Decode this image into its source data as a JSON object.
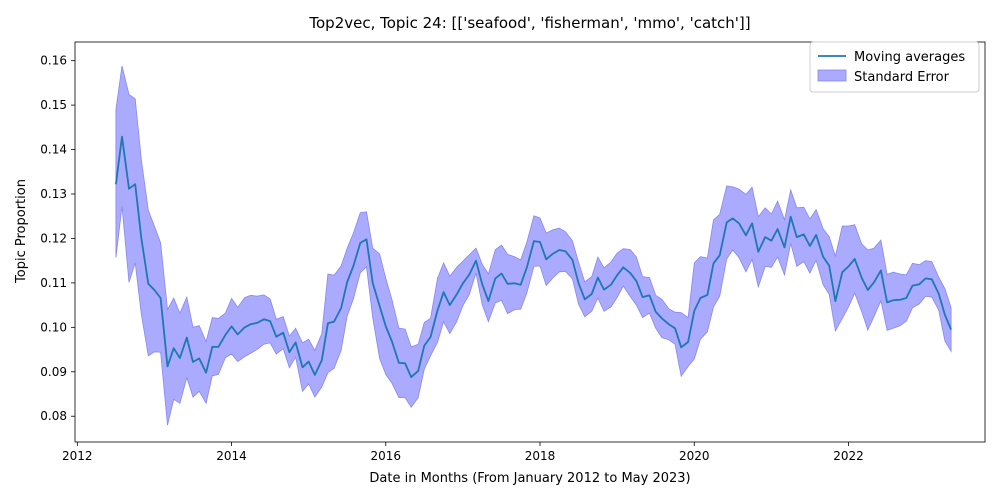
{
  "chart_data": {
    "type": "line",
    "title": "Top2vec, Topic 24: [['seafood', 'fisherman', 'mmo', 'catch']]",
    "xlabel": "Date in Months (From January 2012 to May 2023)",
    "ylabel": "Topic Proportion",
    "xlim": [
      2011.97,
      2023.77
    ],
    "ylim": [
      0.0742,
      0.1642
    ],
    "x_ticks": [
      2012,
      2014,
      2016,
      2018,
      2020,
      2022
    ],
    "y_ticks": [
      0.08,
      0.09,
      0.1,
      0.11,
      0.12,
      0.13,
      0.14,
      0.15,
      0.16
    ],
    "y_tick_labels": [
      "0.08",
      "0.09",
      "0.10",
      "0.11",
      "0.12",
      "0.13",
      "0.14",
      "0.15",
      "0.16"
    ],
    "grid": false,
    "legend": {
      "position": "top-right",
      "entries": [
        "Moving averages",
        "Standard Error"
      ]
    },
    "colors": {
      "line": "#1f77b4",
      "band": "#aaaaff",
      "band_edge": "#8888ee"
    },
    "series": [
      {
        "name": "Moving averages",
        "x": [
          2012.5,
          2012.58,
          2012.67,
          2012.75,
          2012.83,
          2012.92,
          2013.0,
          2013.08,
          2013.17,
          2013.25,
          2013.33,
          2013.42,
          2013.5,
          2013.58,
          2013.67,
          2013.75,
          2013.83,
          2013.92,
          2014.0,
          2014.08,
          2014.17,
          2014.25,
          2014.33,
          2014.42,
          2014.5,
          2014.58,
          2014.67,
          2014.75,
          2014.83,
          2014.92,
          2015.0,
          2015.08,
          2015.17,
          2015.25,
          2015.33,
          2015.42,
          2015.5,
          2015.58,
          2015.67,
          2015.75,
          2015.83,
          2015.92,
          2016.0,
          2016.08,
          2016.17,
          2016.25,
          2016.33,
          2016.42,
          2016.5,
          2016.58,
          2016.67,
          2016.75,
          2016.83,
          2016.92,
          2017.0,
          2017.08,
          2017.17,
          2017.25,
          2017.33,
          2017.42,
          2017.5,
          2017.58,
          2017.67,
          2017.75,
          2017.83,
          2017.92,
          2018.0,
          2018.08,
          2018.17,
          2018.25,
          2018.33,
          2018.42,
          2018.5,
          2018.58,
          2018.67,
          2018.75,
          2018.83,
          2018.92,
          2019.0,
          2019.08,
          2019.17,
          2019.25,
          2019.33,
          2019.42,
          2019.5,
          2019.58,
          2019.67,
          2019.75,
          2019.83,
          2019.92,
          2020.0,
          2020.08,
          2020.17,
          2020.25,
          2020.33,
          2020.42,
          2020.5,
          2020.58,
          2020.67,
          2020.75,
          2020.83,
          2020.92,
          2021.0,
          2021.08,
          2021.17,
          2021.25,
          2021.33,
          2021.42,
          2021.5,
          2021.58,
          2021.67,
          2021.75,
          2021.83,
          2021.92,
          2022.0,
          2022.08,
          2022.17,
          2022.25,
          2022.33,
          2022.42,
          2022.5,
          2022.58,
          2022.67,
          2022.75,
          2022.83,
          2022.92,
          2023.0,
          2023.08,
          2023.17,
          2023.25,
          2023.33
        ],
        "y": [
          0.1322,
          0.1429,
          0.1312,
          0.1322,
          0.1201,
          0.1098,
          0.1084,
          0.1066,
          0.0912,
          0.0953,
          0.0931,
          0.0977,
          0.0922,
          0.093,
          0.0898,
          0.0956,
          0.0956,
          0.0983,
          0.1002,
          0.0984,
          0.1,
          0.1007,
          0.101,
          0.1018,
          0.1014,
          0.0979,
          0.0988,
          0.0944,
          0.0966,
          0.091,
          0.0923,
          0.0893,
          0.0926,
          0.1009,
          0.1013,
          0.1043,
          0.1102,
          0.1138,
          0.119,
          0.1198,
          0.11,
          0.1048,
          0.1002,
          0.0968,
          0.092,
          0.0919,
          0.0888,
          0.0902,
          0.0959,
          0.0978,
          0.1038,
          0.1079,
          0.105,
          0.1074,
          0.1099,
          0.1118,
          0.115,
          0.1097,
          0.1059,
          0.111,
          0.1121,
          0.1098,
          0.1099,
          0.1096,
          0.1135,
          0.1194,
          0.1192,
          0.1153,
          0.1166,
          0.1174,
          0.1171,
          0.1152,
          0.1099,
          0.1063,
          0.1075,
          0.1112,
          0.1085,
          0.1096,
          0.1117,
          0.1135,
          0.1122,
          0.1104,
          0.1068,
          0.1072,
          0.1035,
          0.102,
          0.1007,
          0.0998,
          0.0955,
          0.0967,
          0.1037,
          0.1066,
          0.1073,
          0.1144,
          0.1162,
          0.1236,
          0.1245,
          0.1234,
          0.1207,
          0.1234,
          0.117,
          0.1203,
          0.1195,
          0.1221,
          0.118,
          0.1249,
          0.1203,
          0.1209,
          0.1183,
          0.1208,
          0.1159,
          0.1139,
          0.1059,
          0.1124,
          0.1137,
          0.1154,
          0.1112,
          0.1084,
          0.1101,
          0.1128,
          0.1056,
          0.1061,
          0.1062,
          0.1066,
          0.1094,
          0.1097,
          0.111,
          0.1108,
          0.1076,
          0.1028,
          0.0995
        ]
      },
      {
        "name": "Standard Error",
        "x_ref": "Moving averages",
        "upper": [
          0.149,
          0.1588,
          0.1524,
          0.1514,
          0.1378,
          0.1263,
          0.1228,
          0.119,
          0.104,
          0.1066,
          0.1032,
          0.1068,
          0.1,
          0.1004,
          0.0968,
          0.1022,
          0.102,
          0.1032,
          0.1065,
          0.1045,
          0.1067,
          0.1072,
          0.107,
          0.1073,
          0.1064,
          0.1018,
          0.1024,
          0.098,
          0.0998,
          0.0965,
          0.0973,
          0.0948,
          0.0986,
          0.112,
          0.1117,
          0.1138,
          0.1178,
          0.1212,
          0.1258,
          0.126,
          0.1178,
          0.1165,
          0.111,
          0.1062,
          0.0998,
          0.0996,
          0.0956,
          0.0962,
          0.1011,
          0.102,
          0.111,
          0.1145,
          0.1115,
          0.1135,
          0.1149,
          0.1163,
          0.1178,
          0.1142,
          0.112,
          0.1175,
          0.1185,
          0.1164,
          0.1159,
          0.1152,
          0.1192,
          0.1251,
          0.1246,
          0.1212,
          0.122,
          0.1223,
          0.1215,
          0.1195,
          0.1146,
          0.1102,
          0.1114,
          0.1158,
          0.1134,
          0.1147,
          0.1167,
          0.1177,
          0.1175,
          0.1158,
          0.1114,
          0.1112,
          0.1072,
          0.1063,
          0.1042,
          0.1034,
          0.1033,
          0.1022,
          0.1145,
          0.1159,
          0.1156,
          0.1242,
          0.1254,
          0.1318,
          0.1316,
          0.1311,
          0.1299,
          0.1315,
          0.1249,
          0.1269,
          0.1255,
          0.1284,
          0.1242,
          0.1309,
          0.1269,
          0.127,
          0.1244,
          0.1265,
          0.1222,
          0.1204,
          0.116,
          0.1228,
          0.1228,
          0.1231,
          0.1188,
          0.1174,
          0.1178,
          0.1196,
          0.1119,
          0.1124,
          0.112,
          0.1118,
          0.1144,
          0.1141,
          0.115,
          0.1148,
          0.1113,
          0.1087,
          0.1044
        ],
        "lower": [
          0.1157,
          0.1272,
          0.1101,
          0.1145,
          0.103,
          0.0936,
          0.0945,
          0.0944,
          0.078,
          0.0838,
          0.0829,
          0.0887,
          0.0843,
          0.0856,
          0.0829,
          0.0891,
          0.0894,
          0.0932,
          0.094,
          0.0923,
          0.0934,
          0.0942,
          0.095,
          0.0962,
          0.0965,
          0.094,
          0.0952,
          0.0909,
          0.0933,
          0.0856,
          0.0873,
          0.0843,
          0.0866,
          0.0898,
          0.0908,
          0.0948,
          0.1026,
          0.1064,
          0.1123,
          0.1136,
          0.1022,
          0.093,
          0.0894,
          0.0874,
          0.0842,
          0.0842,
          0.082,
          0.0842,
          0.0906,
          0.0936,
          0.0966,
          0.1013,
          0.0986,
          0.1013,
          0.1049,
          0.1073,
          0.1122,
          0.1051,
          0.1013,
          0.1055,
          0.1061,
          0.1031,
          0.104,
          0.1041,
          0.1078,
          0.1137,
          0.1138,
          0.1094,
          0.1112,
          0.1125,
          0.1126,
          0.1109,
          0.1052,
          0.1024,
          0.1036,
          0.1066,
          0.1036,
          0.1046,
          0.1067,
          0.1093,
          0.1069,
          0.105,
          0.1022,
          0.1032,
          0.0998,
          0.0977,
          0.0972,
          0.0962,
          0.089,
          0.0912,
          0.0929,
          0.0973,
          0.099,
          0.1046,
          0.107,
          0.1154,
          0.1174,
          0.1157,
          0.1125,
          0.1153,
          0.1091,
          0.1137,
          0.1135,
          0.1158,
          0.1118,
          0.1189,
          0.1137,
          0.1148,
          0.1122,
          0.1151,
          0.1096,
          0.1074,
          0.0992,
          0.102,
          0.1046,
          0.1077,
          0.1036,
          0.0994,
          0.1024,
          0.106,
          0.0993,
          0.0998,
          0.1004,
          0.1014,
          0.1044,
          0.1053,
          0.107,
          0.1068,
          0.1039,
          0.0969,
          0.0946
        ]
      }
    ]
  }
}
